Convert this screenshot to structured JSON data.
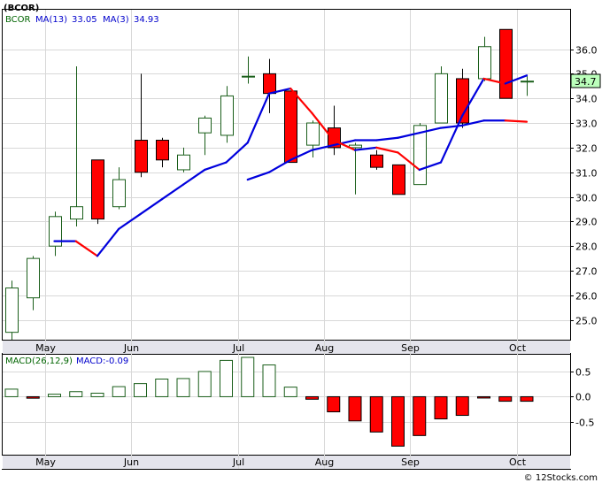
{
  "header": {
    "ticker_title": "(BCOR)",
    "legend_symbol": "BCOR",
    "ma13_label": "MA(13)",
    "ma13_value": "33.05",
    "ma3_label": "MA(3)",
    "ma3_value": "34.93",
    "macd_label": "MACD(26,12,9)",
    "macd_value_label": "MACD:-0.09",
    "last_price": "34.7",
    "watermark": "© 12Stocks.com"
  },
  "colors": {
    "up_candle": "#1a5e1a",
    "down_candle": "#ff0000",
    "ma_line": "#0000dd",
    "ma_down": "#ff0000",
    "legend_green": "#006400",
    "legend_blue": "#0000cc",
    "price_box": "#bbffbb"
  },
  "chart_data": [
    {
      "type": "candlestick",
      "title": "(BCOR)",
      "x_labels": [
        "May",
        "Jun",
        "Jul",
        "Aug",
        "Sep",
        "Oct"
      ],
      "ylim": [
        24.2,
        37.6
      ],
      "yticks": [
        25.0,
        26.0,
        27.0,
        28.0,
        29.0,
        30.0,
        31.0,
        32.0,
        33.0,
        34.0,
        35.0,
        36.0
      ],
      "candles": [
        {
          "o": 24.5,
          "h": 26.6,
          "l": 24.2,
          "c": 26.3
        },
        {
          "o": 25.9,
          "h": 27.6,
          "l": 25.4,
          "c": 27.5
        },
        {
          "o": 28.0,
          "h": 29.4,
          "l": 27.6,
          "c": 29.2
        },
        {
          "o": 29.1,
          "h": 35.3,
          "l": 28.8,
          "c": 29.6
        },
        {
          "o": 31.5,
          "h": 31.5,
          "l": 28.9,
          "c": 29.1
        },
        {
          "o": 29.6,
          "h": 31.2,
          "l": 29.5,
          "c": 30.7
        },
        {
          "o": 32.3,
          "h": 35.0,
          "l": 30.8,
          "c": 31.0
        },
        {
          "o": 32.3,
          "h": 32.4,
          "l": 31.2,
          "c": 31.5
        },
        {
          "o": 31.1,
          "h": 32.0,
          "l": 31.0,
          "c": 31.7
        },
        {
          "o": 32.6,
          "h": 33.3,
          "l": 31.7,
          "c": 33.2
        },
        {
          "o": 32.5,
          "h": 34.5,
          "l": 32.2,
          "c": 34.1
        },
        {
          "o": 34.9,
          "h": 35.7,
          "l": 34.6,
          "c": 34.9
        },
        {
          "o": 35.0,
          "h": 35.6,
          "l": 33.4,
          "c": 34.2
        },
        {
          "o": 34.3,
          "h": 34.3,
          "l": 31.4,
          "c": 31.4
        },
        {
          "o": 32.1,
          "h": 33.1,
          "l": 31.6,
          "c": 33.0
        },
        {
          "o": 32.8,
          "h": 33.7,
          "l": 31.7,
          "c": 32.0
        },
        {
          "o": 32.0,
          "h": 32.2,
          "l": 30.1,
          "c": 32.1
        },
        {
          "o": 31.7,
          "h": 31.9,
          "l": 31.1,
          "c": 31.2
        },
        {
          "o": 31.3,
          "h": 31.3,
          "l": 30.1,
          "c": 30.1
        },
        {
          "o": 30.5,
          "h": 33.0,
          "l": 30.5,
          "c": 32.9
        },
        {
          "o": 33.0,
          "h": 35.3,
          "l": 33.0,
          "c": 35.0
        },
        {
          "o": 34.8,
          "h": 35.2,
          "l": 32.8,
          "c": 33.0
        },
        {
          "o": 34.8,
          "h": 36.5,
          "l": 34.7,
          "c": 36.1
        },
        {
          "o": 36.8,
          "h": 36.8,
          "l": 34.0,
          "c": 34.0
        },
        {
          "o": 34.7,
          "h": 34.9,
          "l": 34.1,
          "c": 34.7
        }
      ],
      "ma13": [
        null,
        null,
        null,
        null,
        null,
        null,
        null,
        null,
        null,
        null,
        null,
        30.7,
        31.0,
        31.5,
        31.9,
        32.1,
        32.3,
        32.3,
        32.4,
        32.6,
        32.8,
        32.9,
        33.1,
        33.1,
        33.05
      ],
      "ma3": [
        null,
        null,
        28.2,
        28.2,
        27.6,
        28.7,
        29.3,
        29.9,
        30.5,
        31.1,
        31.4,
        32.2,
        34.2,
        34.4,
        33.4,
        32.3,
        31.9,
        32.0,
        31.8,
        31.1,
        31.4,
        33.3,
        34.8,
        34.6,
        34.93
      ]
    },
    {
      "type": "bar",
      "title": "MACD(26,12,9)",
      "x_labels": [
        "May",
        "Jun",
        "Jul",
        "Aug",
        "Sep",
        "Oct"
      ],
      "ylim": [
        -1.15,
        0.85
      ],
      "yticks": [
        -0.5,
        0.0,
        0.5
      ],
      "values": [
        0.15,
        -0.03,
        0.05,
        0.1,
        0.07,
        0.2,
        0.26,
        0.35,
        0.36,
        0.5,
        0.72,
        0.78,
        0.63,
        0.19,
        -0.05,
        -0.3,
        -0.48,
        -0.7,
        -0.98,
        -0.77,
        -0.44,
        -0.37,
        -0.02,
        -0.09,
        -0.09
      ]
    }
  ]
}
